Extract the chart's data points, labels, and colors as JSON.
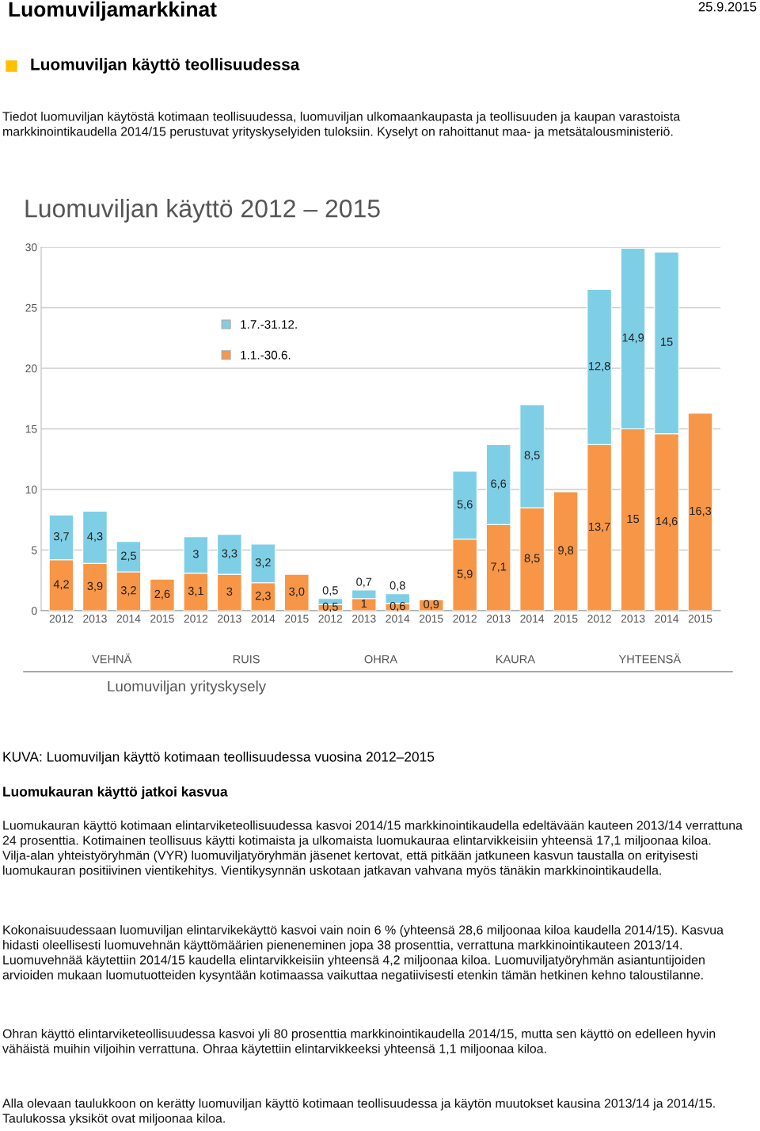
{
  "chart_data": {
    "type": "bar",
    "title": "Luomuviljan käyttö 2012 – 2015",
    "stacked": true,
    "categories": [
      "2012",
      "2013",
      "2014",
      "2015",
      "2012",
      "2013",
      "2014",
      "2015",
      "2012",
      "2013",
      "2014",
      "2015",
      "2012",
      "2013",
      "2014",
      "2015",
      "2012",
      "2013",
      "2014",
      "2015"
    ],
    "series": [
      {
        "name": "1.1.-30.6.",
        "color": "#f79646",
        "values": [
          4.2,
          3.9,
          3.2,
          2.6,
          3.1,
          3,
          2.3,
          3.0,
          0.5,
          1,
          0.6,
          0.9,
          5.9,
          7.1,
          8.5,
          9.8,
          13.7,
          15,
          14.6,
          16.3
        ],
        "value_labels": [
          "4,2",
          "3,9",
          "3,2",
          "2,6",
          "3,1",
          "3",
          "2,3",
          "3,0",
          "0,5",
          "1",
          "0,6",
          "0,9",
          "5,9",
          "7,1",
          "8,5",
          "9,8",
          "13,7",
          "15",
          "14,6",
          "16,3"
        ]
      },
      {
        "name": "1.7.-31.12.",
        "color": "#7ecfe6",
        "values": [
          3.7,
          4.3,
          2.5,
          null,
          3,
          3.3,
          3.2,
          null,
          0.5,
          0.7,
          0.8,
          null,
          5.6,
          6.6,
          8.5,
          null,
          12.8,
          14.9,
          15,
          null
        ],
        "value_labels": [
          "3,7",
          "4,3",
          "2,5",
          null,
          "3",
          "3,3",
          "3,2",
          null,
          "0,5",
          "0,7",
          "0,8",
          null,
          "5,6",
          "6,6",
          "8,5",
          null,
          "12,8",
          "14,9",
          "15",
          null
        ]
      }
    ],
    "ylim": [
      0,
      30
    ],
    "yticks": [
      0,
      5,
      10,
      15,
      20,
      25,
      30
    ],
    "grid": "y",
    "legend": "top left",
    "annotations": [
      "Luomuviljamarkkinat",
      "25.9.2015",
      "Luomuviljan käyttö teollisuudessa",
      "Tiedot luomuviljan käytöstä kotimaan teollisuudessa, luomuviljan ulkomaankaupasta ja teollisuuden ja kaupan varastoista markkinointikaudella 2014/15 perustuvat yrityskyselyiden tuloksiin. Kyselyt on rahoittanut maa- ja metsätalousministeriö.",
      "Luomuviljan yrityskysely",
      "KUVA: Luomuviljan käyttö kotimaan teollisuudessa vuosina 2012–2015",
      "Luomukauran käyttö jatkoi kasvua",
      "Luomukauran käyttö kotimaan elintarviketeollisuudessa kasvoi 2014/15 markkinointikaudella edeltävään kauteen 2013/14 verrattuna 24 prosenttia. Kotimainen teollisuus käytti kotimaista ja ulkomaista luomukauraa elintarvikkeisiin yhteensä 17,1 miljoonaa kiloa. Vilja-alan yhteistyöryhmän (VYR) luomuviljatyöryhmän jäsenet kertovat, että pitkään jatkuneen kasvun taustalla on erityisesti luomukauran positiivinen vientikehitys. Vientikysynnän uskotaan jatkavan vahvana myös tänäkin markkinointikaudella.",
      "Kokonaisuudessaan luomuviljan elintarvikekäyttö kasvoi vain noin 6 % (yhteensä 28,6 miljoonaa kiloa kaudella 2014/15). Kasvua hidasti oleellisesti luomuvehnän käyttömäärien pieneneminen jopa 38 prosenttia, verrattuna markkinointikauteen 2013/14. Luomuvehnää käytettiin 2014/15 kaudella elintarvikkeisiin yhteensä 4,2 miljoonaa kiloa. Luomuviljatyöryhmän asiantuntijoiden arvioiden mukaan luomutuotteiden kysyntään kotimaassa vaikuttaa negatiivisesti etenkin tämän hetkinen kehno taloustilanne.",
      "Ohran käyttö elintarviketeollisuudessa kasvoi yli 80 prosenttia markkinointikaudella 2014/15, mutta sen käyttö on edelleen hyvin vähäistä muihin viljoihin verrattuna. Ohraa käytettiin elintarvikkeeksi yhteensä 1,1 miljoonaa kiloa.",
      "Alla olevaan taulukkoon on kerätty luomuviljan käyttö kotimaan teollisuudessa ja käytön muutokset kausina 2013/14 ja 2014/15. Taulukossa yksiköt ovat miljoonaa kiloa.",
      "VEHNÄ",
      "RUIS",
      "OHRA",
      "KAURA",
      "YHTEENSÄ"
    ]
  }
}
